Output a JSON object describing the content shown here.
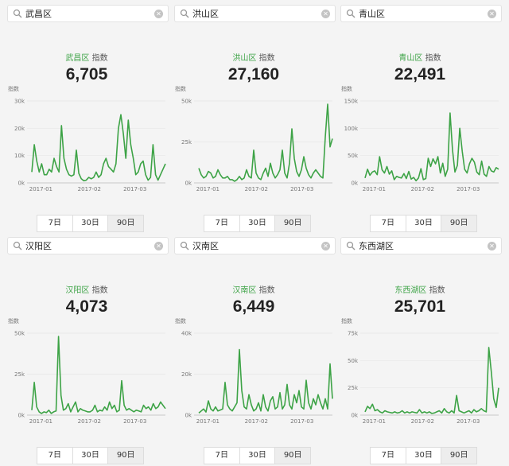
{
  "accent": "#3da346",
  "index_label": "指数",
  "y_axis_label": "指数",
  "range_buttons": [
    "7日",
    "30日",
    "90日"
  ],
  "active_range": "90日",
  "panels": [
    {
      "search_text": "武昌区",
      "keyword": "武昌区",
      "value": "6,705",
      "chart_data": {
        "type": "line",
        "ylim": [
          0,
          30000
        ],
        "yticks": [
          "30k",
          "20k",
          "10k",
          "0k"
        ],
        "xticks": [
          "2017-01",
          "2017-02",
          "2017-03"
        ],
        "values": [
          4000,
          14000,
          8000,
          4000,
          7000,
          3000,
          3000,
          5000,
          4000,
          9000,
          6000,
          4000,
          21000,
          9000,
          5000,
          3000,
          2500,
          3000,
          12000,
          3500,
          1500,
          800,
          1000,
          2000,
          1500,
          2000,
          4000,
          2000,
          3000,
          7000,
          9000,
          6000,
          5000,
          4000,
          7000,
          20000,
          25000,
          18000,
          9000,
          23000,
          14000,
          9000,
          3000,
          4000,
          7000,
          8000,
          3000,
          1000,
          2000,
          14000,
          3000,
          1000,
          3000,
          5000,
          7000
        ]
      }
    },
    {
      "search_text": "洪山区",
      "keyword": "洪山区",
      "value": "27,160",
      "chart_data": {
        "type": "line",
        "ylim": [
          0,
          50000
        ],
        "yticks": [
          "50k",
          "25k",
          "0k"
        ],
        "xticks": [
          "2017-01",
          "2017-02",
          "2017-03"
        ],
        "values": [
          9000,
          5000,
          3000,
          4000,
          7000,
          6000,
          3000,
          4000,
          8000,
          5000,
          3000,
          3000,
          4000,
          2000,
          2000,
          1000,
          2000,
          4000,
          2000,
          3000,
          8000,
          4000,
          3000,
          20000,
          6000,
          3000,
          2000,
          6000,
          9000,
          4000,
          12000,
          6000,
          3000,
          5000,
          8000,
          20000,
          6000,
          3000,
          12000,
          33000,
          15000,
          7000,
          4000,
          8000,
          16000,
          9000,
          5000,
          3000,
          6000,
          8000,
          6000,
          4000,
          3000,
          28000,
          48000,
          22000,
          27000
        ]
      }
    },
    {
      "search_text": "青山区",
      "keyword": "青山区",
      "value": "22,491",
      "chart_data": {
        "type": "line",
        "ylim": [
          0,
          150000
        ],
        "yticks": [
          "150k",
          "100k",
          "50k",
          "0k"
        ],
        "xticks": [
          "2017-01",
          "2017-02",
          "2017-03"
        ],
        "values": [
          9000,
          25000,
          14000,
          20000,
          22000,
          15000,
          48000,
          24000,
          18000,
          30000,
          16000,
          22000,
          6000,
          12000,
          10000,
          9000,
          17000,
          8000,
          21000,
          7000,
          10000,
          4000,
          9000,
          26000,
          6000,
          8000,
          45000,
          30000,
          44000,
          35000,
          48000,
          18000,
          36000,
          12000,
          25000,
          128000,
          60000,
          20000,
          32000,
          100000,
          58000,
          25000,
          18000,
          35000,
          45000,
          38000,
          20000,
          15000,
          40000,
          16000,
          12000,
          30000,
          22000,
          20000,
          28000,
          25000
        ]
      }
    },
    {
      "search_text": "汉阳区",
      "keyword": "汉阳区",
      "value": "4,073",
      "chart_data": {
        "type": "line",
        "ylim": [
          0,
          50000
        ],
        "yticks": [
          "50k",
          "25k",
          "0k"
        ],
        "xticks": [
          "2017-01",
          "2017-02",
          "2017-03"
        ],
        "values": [
          3000,
          20000,
          5000,
          2000,
          1000,
          2000,
          1500,
          3000,
          1000,
          2000,
          2500,
          48000,
          12000,
          3000,
          4000,
          7000,
          2000,
          5000,
          8000,
          2000,
          4000,
          3000,
          2500,
          2000,
          2000,
          3000,
          6000,
          2000,
          3000,
          2500,
          5000,
          3000,
          8000,
          4000,
          6000,
          2000,
          3000,
          21000,
          6000,
          3000,
          4000,
          3000,
          2000,
          3000,
          2500,
          2000,
          6000,
          4000,
          5000,
          3000,
          7000,
          4000,
          5000,
          8000,
          6000,
          4000
        ]
      }
    },
    {
      "search_text": "汉南区",
      "keyword": "汉南区",
      "value": "6,449",
      "chart_data": {
        "type": "line",
        "ylim": [
          0,
          40000
        ],
        "yticks": [
          "40k",
          "20k",
          "0k"
        ],
        "xticks": [
          "2017-01",
          "2017-02",
          "2017-03"
        ],
        "values": [
          1000,
          2000,
          3000,
          1500,
          7000,
          3000,
          2000,
          4000,
          2000,
          2500,
          3000,
          16000,
          5000,
          3000,
          2000,
          4000,
          6000,
          32000,
          12000,
          4000,
          3000,
          10000,
          5000,
          2000,
          3000,
          6000,
          2000,
          10000,
          4000,
          2000,
          7000,
          9000,
          3000,
          4000,
          11000,
          3000,
          5000,
          15000,
          5000,
          3000,
          10000,
          6000,
          12000,
          4000,
          3000,
          17000,
          6000,
          3000,
          8000,
          5000,
          10000,
          6000,
          3000,
          8000,
          3000,
          25000,
          8000
        ]
      }
    },
    {
      "search_text": "东西湖区",
      "keyword": "东西湖区",
      "value": "25,701",
      "chart_data": {
        "type": "line",
        "ylim": [
          0,
          75000
        ],
        "yticks": [
          "75k",
          "50k",
          "25k",
          "0k"
        ],
        "xticks": [
          "2017-01",
          "2017-02",
          "2017-03"
        ],
        "values": [
          3000,
          8000,
          6000,
          10000,
          4000,
          5000,
          3000,
          2000,
          4000,
          3000,
          2500,
          2000,
          3000,
          2000,
          2500,
          4000,
          2000,
          3000,
          2000,
          3000,
          2500,
          2000,
          5000,
          2000,
          3000,
          2000,
          3000,
          1500,
          2000,
          3000,
          4000,
          2000,
          6000,
          3000,
          2000,
          4000,
          2000,
          18000,
          4000,
          3000,
          2000,
          3000,
          4000,
          2000,
          5000,
          3000,
          4000,
          6000,
          4000,
          3000,
          62000,
          40000,
          15000,
          7000,
          25000
        ]
      }
    }
  ]
}
